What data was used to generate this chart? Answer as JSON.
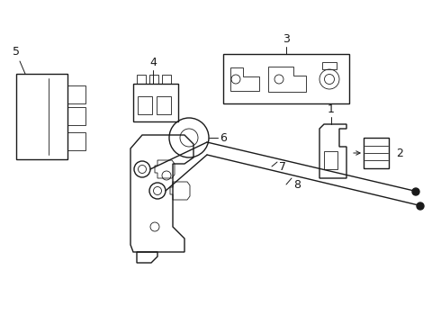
{
  "bg_color": "#ffffff",
  "line_color": "#1a1a1a",
  "line_width": 1.0,
  "thin_line": 0.6,
  "figsize": [
    4.9,
    3.6
  ],
  "dpi": 100
}
